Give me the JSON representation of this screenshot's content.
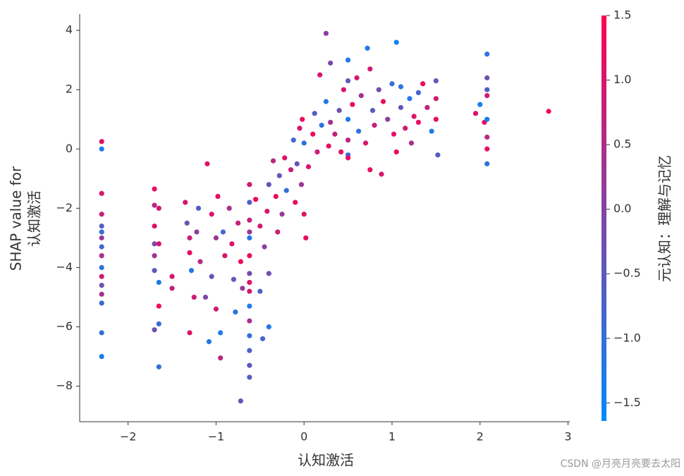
{
  "chart_data": {
    "type": "scatter",
    "xlabel": "认知激活",
    "ylabel": [
      "SHAP value for",
      "认知激活"
    ],
    "colorbar_label": "元认知：理解与记忆",
    "watermark": "CSDN @月亮月亮要去太阳",
    "xlim": [
      -2.55,
      3.02
    ],
    "ylim": [
      -9.2,
      4.55
    ],
    "clim": [
      -1.64,
      1.5
    ],
    "colormap": [
      "#008bfb",
      "#ff0052"
    ],
    "xticks": [
      {
        "value": -2,
        "label": "−2"
      },
      {
        "value": -1,
        "label": "−1"
      },
      0,
      1,
      2,
      3
    ],
    "yticks": [
      {
        "value": -8,
        "label": "−8"
      },
      {
        "value": -6,
        "label": "−6"
      },
      {
        "value": -4,
        "label": "−4"
      },
      {
        "value": -2,
        "label": "−2"
      },
      0,
      2,
      4
    ],
    "cticks": [
      {
        "value": -1.5,
        "label": "−1.5"
      },
      {
        "value": -1,
        "label": "−1.0"
      },
      {
        "value": -0.5,
        "label": "−0.5"
      },
      {
        "value": 0,
        "label": "0.0"
      },
      0.5,
      {
        "value": 1,
        "label": "1.0"
      },
      1.5
    ],
    "x": [
      -2.3,
      -2.3,
      -2.3,
      -2.3,
      -2.3,
      -2.3,
      -2.3,
      -2.3,
      -2.3,
      -2.3,
      -2.3,
      -2.3,
      -2.3,
      -2.3,
      -2.3,
      -2.3,
      -1.7,
      -1.7,
      -1.7,
      -1.7,
      -1.7,
      -1.7,
      -1.7,
      -1.65,
      -1.65,
      -1.65,
      -1.65,
      -1.65,
      -1.65,
      -1.5,
      -1.5,
      -1.35,
      -1.33,
      -1.3,
      -1.3,
      -1.28,
      -1.25,
      -1.3,
      -1.22,
      -1.2,
      -1.18,
      -1.05,
      -1.0,
      -1.05,
      -1.08,
      -1.0,
      -0.98,
      -1.1,
      -0.95,
      -0.92,
      -0.9,
      -0.95,
      -1.12,
      -0.85,
      -0.82,
      -0.8,
      -0.78,
      -0.75,
      -0.72,
      -0.72,
      -0.7,
      -0.62,
      -0.62,
      -0.62,
      -0.62,
      -0.62,
      -0.62,
      -0.62,
      -0.62,
      -0.62,
      -0.62,
      -0.62,
      -0.62,
      -0.62,
      -0.62,
      -0.62,
      -0.55,
      -0.5,
      -0.5,
      -0.47,
      -0.45,
      -0.4,
      -0.4,
      -0.4,
      -0.42,
      -0.35,
      -0.32,
      -0.3,
      -0.28,
      -0.25,
      -0.22,
      -0.2,
      -0.15,
      -0.12,
      -0.1,
      -0.08,
      -0.05,
      -0.03,
      0.0,
      0.02,
      0.0,
      0.05,
      -0.02,
      0.1,
      0.12,
      0.15,
      0.18,
      0.2,
      0.25,
      0.25,
      0.28,
      0.3,
      0.3,
      0.35,
      0.4,
      0.42,
      0.45,
      0.5,
      0.5,
      0.5,
      0.5,
      0.5,
      0.5,
      0.55,
      0.6,
      0.62,
      0.65,
      0.7,
      0.72,
      0.75,
      0.75,
      0.78,
      0.8,
      0.85,
      0.88,
      0.9,
      0.95,
      1.0,
      1.02,
      1.05,
      1.05,
      1.1,
      1.1,
      1.15,
      1.2,
      1.22,
      1.25,
      1.3,
      1.3,
      1.35,
      1.4,
      1.45,
      1.5,
      1.5,
      1.52,
      1.5,
      1.95,
      2.0,
      2.05,
      2.08,
      2.08,
      2.08,
      2.08,
      2.08,
      2.08,
      2.08,
      2.08,
      2.78
    ],
    "values": [
      0.25,
      0,
      -1.5,
      -2.2,
      -2.6,
      -2.8,
      -3.0,
      -3.3,
      -3.6,
      -4.0,
      -4.3,
      -4.6,
      -4.9,
      -5.2,
      -6.2,
      -7.0,
      -1.35,
      -1.9,
      -2.6,
      -3.2,
      -3.6,
      -4.1,
      -6.1,
      -4.5,
      -5.9,
      -7.35,
      -3.2,
      -5.3,
      -2.0,
      -4.3,
      -4.7,
      -1.8,
      -2.5,
      -3.0,
      -3.5,
      -4.1,
      -5.0,
      -6.2,
      -2.8,
      -2.0,
      -3.8,
      -2.2,
      -3.0,
      -4.3,
      -6.5,
      -5.4,
      -1.6,
      -0.5,
      -7.05,
      -2.8,
      -3.6,
      -6.2,
      -5.0,
      -2.0,
      -3.2,
      -4.4,
      -5.5,
      -2.5,
      -3.8,
      -8.5,
      -4.7,
      -1.2,
      -1.8,
      -2.4,
      -3.0,
      -3.6,
      -4.2,
      -4.8,
      -5.3,
      -5.8,
      -6.3,
      -6.8,
      -7.3,
      -7.7,
      -2.8,
      -4.5,
      -1.7,
      -2.6,
      -4.8,
      -6.4,
      -3.3,
      -1.2,
      -4.2,
      -6.0,
      -2.1,
      -0.4,
      -1.6,
      -2.8,
      -0.9,
      -2.2,
      -0.3,
      -1.4,
      -0.7,
      0.3,
      -1.8,
      -0.5,
      0.7,
      -1.2,
      -2.2,
      -3.0,
      0.2,
      -0.6,
      1.0,
      0.5,
      1.2,
      -0.1,
      2.5,
      0.8,
      1.6,
      3.9,
      0.1,
      2.9,
      0.9,
      0.5,
      1.3,
      -0.1,
      2.0,
      3.0,
      2.3,
      1.0,
      0.3,
      -0.2,
      -0.3,
      1.5,
      2.4,
      0.6,
      1.8,
      0.2,
      3.4,
      -0.7,
      2.7,
      1.3,
      0.8,
      2.0,
      -0.85,
      1.6,
      1.0,
      2.2,
      0.5,
      3.6,
      -0.1,
      1.4,
      2.1,
      0.7,
      1.7,
      0.2,
      1.1,
      1.9,
      0.9,
      2.2,
      1.4,
      0.6,
      1.0,
      2.3,
      -0.2,
      1.7,
      1.2,
      1.5,
      0.9,
      3.2,
      2.4,
      1.8,
      1.0,
      0.4,
      -0.5,
      0.0,
      2.0,
      1.27
    ],
    "color_values": [
      1.2,
      -1.3,
      1.0,
      0.8,
      -0.6,
      -1.0,
      0.2,
      -0.8,
      0.5,
      -1.1,
      0.9,
      -0.3,
      0.4,
      -0.9,
      -1.0,
      -1.3,
      1.2,
      0.6,
      1.1,
      -0.2,
      0.3,
      -0.5,
      -0.3,
      -1.2,
      -0.9,
      -1.0,
      1.0,
      1.3,
      0.9,
      1.0,
      0.7,
      1.0,
      -0.3,
      0.8,
      1.2,
      -1.2,
      0.9,
      1.1,
      0.1,
      -0.6,
      0.6,
      1.0,
      0.3,
      -0.4,
      -1.2,
      0.9,
      1.2,
      1.1,
      0.6,
      -0.8,
      1.0,
      -1.3,
      -0.1,
      0.4,
      1.1,
      -0.5,
      -1.1,
      0.8,
      1.3,
      -0.4,
      0.2,
      1.0,
      -0.6,
      0.7,
      -1.2,
      1.2,
      -0.2,
      0.9,
      -1.3,
      0.4,
      -1.0,
      -0.7,
      -0.5,
      -0.6,
      0.3,
      1.1,
      1.2,
      0.9,
      -0.7,
      -0.8,
      0.0,
      -0.3,
      -0.3,
      -1.3,
      1.0,
      0.6,
      1.3,
      0.9,
      -0.5,
      0.2,
      1.1,
      -1.0,
      0.8,
      -0.8,
      1.2,
      -0.4,
      1.0,
      0.3,
      1.1,
      1.2,
      -1.1,
      1.0,
      1.2,
      1.3,
      -0.6,
      0.9,
      1.0,
      -1.1,
      -1.2,
      0.1,
      1.2,
      -0.1,
      0.4,
      0.7,
      -0.3,
      1.1,
      1.0,
      -1.2,
      -0.5,
      -1.3,
      0.6,
      -0.8,
      1.2,
      1.2,
      0.9,
      -1.1,
      0.3,
      1.0,
      -1.3,
      1.2,
      0.9,
      -0.6,
      0.8,
      -0.2,
      1.0,
      1.2,
      0.0,
      -1.0,
      1.1,
      -1.4,
      1.3,
      -0.5,
      -1.1,
      0.9,
      -1.2,
      0.5,
      1.1,
      -0.8,
      1.2,
      1.3,
      0.7,
      -1.3,
      1.2,
      -0.5,
      -0.6,
      0.9,
      1.1,
      -1.4,
      1.2,
      -1.1,
      -0.3,
      0.9,
      -1.3,
      0.6,
      -1.1,
      1.2,
      -0.7,
      1.3
    ]
  }
}
